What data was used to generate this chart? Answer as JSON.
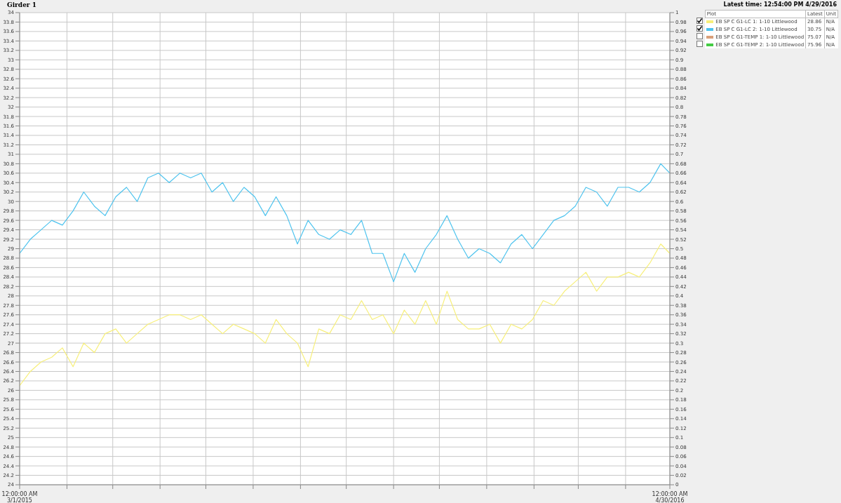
{
  "chart_data": {
    "type": "line",
    "title": "Girder 1",
    "annotations": [
      "Latest time: 12:54:00 PM 4/29/2016",
      "Plot",
      "Latest",
      "Unit",
      "28.86",
      "N/A",
      "30.75",
      "N/A",
      "75.07",
      "N/A",
      "75.96",
      "N/A"
    ],
    "x": [
      "2015-03-01",
      "2015-03-08",
      "2015-03-15",
      "2015-03-22",
      "2015-03-29",
      "2015-04-05",
      "2015-04-12",
      "2015-04-19",
      "2015-04-26",
      "2015-05-03",
      "2015-05-10",
      "2015-05-17",
      "2015-05-24",
      "2015-05-31",
      "2015-06-07",
      "2015-06-14",
      "2015-06-21",
      "2015-06-28",
      "2015-07-05",
      "2015-07-12",
      "2015-07-19",
      "2015-07-26",
      "2015-08-02",
      "2015-08-09",
      "2015-08-16",
      "2015-08-23",
      "2015-08-30",
      "2015-09-06",
      "2015-09-13",
      "2015-09-20",
      "2015-09-27",
      "2015-10-04",
      "2015-10-11",
      "2015-10-18",
      "2015-10-25",
      "2015-11-01",
      "2015-11-08",
      "2015-11-15",
      "2015-11-22",
      "2015-11-29",
      "2015-12-06",
      "2015-12-13",
      "2015-12-20",
      "2015-12-27",
      "2016-01-03",
      "2016-01-10",
      "2016-01-17",
      "2016-01-24",
      "2016-01-31",
      "2016-02-07",
      "2016-02-14",
      "2016-02-21",
      "2016-02-28",
      "2016-03-06",
      "2016-03-13",
      "2016-03-20",
      "2016-03-27",
      "2016-04-03",
      "2016-04-10",
      "2016-04-17",
      "2016-04-24",
      "2016-04-30"
    ],
    "series": [
      {
        "name": "EB SP C G1-LC 1: 1-10 Littlewood",
        "color": "#f7ef7a",
        "values": [
          26.1,
          26.4,
          26.6,
          26.7,
          26.9,
          26.5,
          27.0,
          26.8,
          27.2,
          27.3,
          27.0,
          27.2,
          27.4,
          27.5,
          27.6,
          27.6,
          27.5,
          27.6,
          27.4,
          27.2,
          27.4,
          27.3,
          27.2,
          27.0,
          27.5,
          27.2,
          27.0,
          26.5,
          27.3,
          27.2,
          27.6,
          27.5,
          27.9,
          27.5,
          27.6,
          27.2,
          27.7,
          27.4,
          27.9,
          27.4,
          28.1,
          27.5,
          27.3,
          27.3,
          27.4,
          27.0,
          27.4,
          27.3,
          27.5,
          27.9,
          27.8,
          28.1,
          28.3,
          28.5,
          28.1,
          28.4,
          28.4,
          28.5,
          28.4,
          28.7,
          29.1,
          28.9
        ]
      },
      {
        "name": "EB SP C G1-LC 2: 1-10 Littlewood",
        "color": "#4dc3ee",
        "values": [
          28.9,
          29.2,
          29.4,
          29.6,
          29.5,
          29.8,
          30.2,
          29.9,
          29.7,
          30.1,
          30.3,
          30.0,
          30.5,
          30.6,
          30.4,
          30.6,
          30.5,
          30.6,
          30.2,
          30.4,
          30.0,
          30.3,
          30.1,
          29.7,
          30.1,
          29.7,
          29.1,
          29.6,
          29.3,
          29.2,
          29.4,
          29.3,
          29.6,
          28.9,
          28.9,
          28.3,
          28.9,
          28.5,
          29.0,
          29.3,
          29.7,
          29.2,
          28.8,
          29.0,
          28.9,
          28.7,
          29.1,
          29.3,
          29.0,
          29.3,
          29.6,
          29.7,
          29.9,
          30.3,
          30.2,
          29.9,
          30.3,
          30.3,
          30.2,
          30.4,
          30.8,
          30.6
        ]
      },
      {
        "name": "EB SP C G1-TEMP 1: 1-10 Littlewood",
        "color": "#d9a07a",
        "values": [
          null,
          null,
          null,
          null,
          null,
          null,
          null,
          null,
          null,
          null,
          null,
          null,
          null,
          null,
          null,
          null,
          null,
          null,
          null,
          null,
          null,
          null,
          null,
          null,
          null,
          null,
          null,
          null,
          null,
          null,
          null,
          null,
          null,
          null,
          null,
          null,
          null,
          null,
          null,
          null,
          null,
          null,
          null,
          null,
          null,
          null,
          null,
          null,
          null,
          null,
          null,
          null,
          null,
          null,
          null,
          null,
          null,
          null,
          null,
          null,
          null,
          null
        ]
      },
      {
        "name": "EB SP C G1-TEMP 2: 1-10 Littlewood",
        "color": "#44cc44",
        "values": [
          null,
          null,
          null,
          null,
          null,
          null,
          null,
          null,
          null,
          null,
          null,
          null,
          null,
          null,
          null,
          null,
          null,
          null,
          null,
          null,
          null,
          null,
          null,
          null,
          null,
          null,
          null,
          null,
          null,
          null,
          null,
          null,
          null,
          null,
          null,
          null,
          null,
          null,
          null,
          null,
          null,
          null,
          null,
          null,
          null,
          null,
          null,
          null,
          null,
          null,
          null,
          null,
          null,
          null,
          null,
          null,
          null,
          null,
          null,
          null,
          null,
          null
        ]
      }
    ],
    "xlim": [
      "2015-03-01",
      "2016-04-30"
    ],
    "xticks": [
      {
        "value": "2015-03-01",
        "label": "12:00:00 AM 3/1/2015"
      },
      {
        "value": "2015-04-01",
        "label": null
      },
      {
        "value": "2015-05-01",
        "label": null
      },
      {
        "value": "2015-06-01",
        "label": null
      },
      {
        "value": "2015-07-01",
        "label": null
      },
      {
        "value": "2015-08-01",
        "label": null
      },
      {
        "value": "2015-09-01",
        "label": null
      },
      {
        "value": "2015-10-01",
        "label": null
      },
      {
        "value": "2015-11-01",
        "label": null
      },
      {
        "value": "2015-12-01",
        "label": null
      },
      {
        "value": "2016-01-01",
        "label": null
      },
      {
        "value": "2016-02-01",
        "label": null
      },
      {
        "value": "2016-03-01",
        "label": null
      },
      {
        "value": "2016-04-01",
        "label": null
      },
      {
        "value": "2016-04-30",
        "label": "12:00:00 AM 4/30/2016"
      }
    ],
    "ylim": [
      24,
      34
    ],
    "yticks": [
      24,
      24.2,
      24.4,
      24.6,
      24.8,
      25,
      25.2,
      25.4,
      25.6,
      25.8,
      26,
      26.2,
      26.4,
      26.6,
      26.8,
      27,
      27.2,
      27.4,
      27.6,
      27.8,
      28,
      28.2,
      28.4,
      28.6,
      28.8,
      29,
      29.2,
      29.4,
      29.6,
      29.8,
      30,
      30.2,
      30.4,
      30.6,
      30.8,
      31,
      31.2,
      31.4,
      31.6,
      31.8,
      32,
      32.2,
      32.4,
      32.6,
      32.8,
      33,
      33.2,
      33.4,
      33.6,
      33.8,
      34
    ],
    "y2lim": [
      0,
      1
    ],
    "y2ticks": [
      0,
      0.02,
      0.04,
      0.06,
      0.08,
      0.1,
      0.12,
      0.14,
      0.16,
      0.18,
      0.2,
      0.22,
      0.24,
      0.26,
      0.28,
      0.3,
      0.32,
      0.34,
      0.36,
      0.38,
      0.4,
      0.42,
      0.44,
      0.46,
      0.48,
      0.5,
      0.52,
      0.54,
      0.56,
      0.58,
      0.6,
      0.62,
      0.64,
      0.66,
      0.68,
      0.7,
      0.72,
      0.74,
      0.76,
      0.78,
      0.8,
      0.82,
      0.84,
      0.86,
      0.88,
      0.9,
      0.92,
      0.94,
      0.96,
      0.98,
      1
    ],
    "grid": true,
    "legend": "top right",
    "marker": "none",
    "line_style": "solid"
  }
}
